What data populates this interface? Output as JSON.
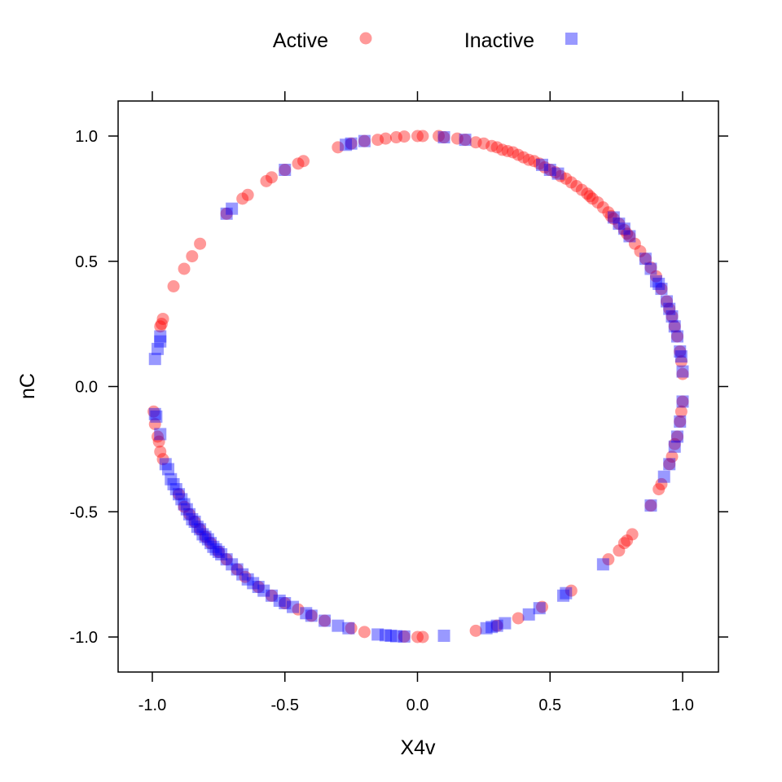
{
  "chart_data": {
    "type": "scatter",
    "title": "",
    "xlabel": "X4v",
    "ylabel": "nC",
    "xlim": [
      -1.13,
      1.13
    ],
    "ylim": [
      -1.14,
      1.14
    ],
    "x_ticks": [
      -1.0,
      -0.5,
      0.0,
      0.5,
      1.0
    ],
    "y_ticks": [
      -1.0,
      -0.5,
      0.0,
      0.5,
      1.0
    ],
    "x_tick_labels": [
      "-1.0",
      "-0.5",
      "0.0",
      "0.5",
      "1.0"
    ],
    "y_tick_labels": [
      "-1.0",
      "-0.5",
      "0.0",
      "0.5",
      "1.0"
    ],
    "grid": false,
    "legend_position": "top",
    "series": [
      {
        "name": "Active",
        "marker": "circle",
        "color": "#ff0000",
        "opacity": 0.4,
        "points": [
          [
            0.0,
            1.0
          ],
          [
            0.02,
            1.0
          ],
          [
            0.08,
            1.0
          ],
          [
            0.1,
            0.995
          ],
          [
            0.15,
            0.99
          ],
          [
            0.18,
            0.985
          ],
          [
            0.22,
            0.975
          ],
          [
            0.25,
            0.97
          ],
          [
            0.28,
            0.96
          ],
          [
            0.3,
            0.955
          ],
          [
            0.32,
            0.945
          ],
          [
            0.34,
            0.94
          ],
          [
            0.36,
            0.935
          ],
          [
            0.38,
            0.925
          ],
          [
            0.4,
            0.915
          ],
          [
            0.42,
            0.905
          ],
          [
            0.44,
            0.9
          ],
          [
            0.46,
            0.89
          ],
          [
            0.48,
            0.875
          ],
          [
            0.5,
            0.865
          ],
          [
            0.52,
            0.855
          ],
          [
            0.54,
            0.84
          ],
          [
            0.56,
            0.83
          ],
          [
            0.58,
            0.815
          ],
          [
            0.6,
            0.8
          ],
          [
            0.62,
            0.785
          ],
          [
            0.64,
            0.77
          ],
          [
            0.65,
            0.76
          ],
          [
            0.66,
            0.75
          ],
          [
            0.68,
            0.735
          ],
          [
            0.7,
            0.715
          ],
          [
            0.72,
            0.695
          ],
          [
            0.73,
            0.68
          ],
          [
            0.74,
            0.67
          ],
          [
            0.76,
            0.65
          ],
          [
            0.78,
            0.625
          ],
          [
            0.79,
            0.61
          ],
          [
            0.8,
            0.6
          ],
          [
            0.82,
            0.57
          ],
          [
            0.84,
            0.54
          ],
          [
            0.86,
            0.51
          ],
          [
            0.88,
            0.475
          ],
          [
            0.9,
            0.44
          ],
          [
            0.92,
            0.39
          ],
          [
            0.94,
            0.34
          ],
          [
            0.95,
            0.31
          ],
          [
            0.96,
            0.28
          ],
          [
            0.97,
            0.24
          ],
          [
            0.98,
            0.2
          ],
          [
            0.99,
            0.14
          ],
          [
            0.995,
            0.1
          ],
          [
            1.0,
            0.05
          ],
          [
            -0.05,
            0.998
          ],
          [
            -0.08,
            0.995
          ],
          [
            -0.12,
            0.99
          ],
          [
            -0.15,
            0.985
          ],
          [
            -0.2,
            0.98
          ],
          [
            -0.25,
            0.97
          ],
          [
            -0.3,
            0.955
          ],
          [
            -0.43,
            0.9
          ],
          [
            -0.45,
            0.89
          ],
          [
            -0.5,
            0.865
          ],
          [
            -0.55,
            0.835
          ],
          [
            -0.57,
            0.82
          ],
          [
            -0.64,
            0.765
          ],
          [
            -0.66,
            0.75
          ],
          [
            -0.72,
            0.69
          ],
          [
            -0.82,
            0.57
          ],
          [
            -0.85,
            0.52
          ],
          [
            -0.88,
            0.47
          ],
          [
            -0.92,
            0.4
          ],
          [
            -0.96,
            0.27
          ],
          [
            -0.965,
            0.25
          ],
          [
            -0.97,
            0.24
          ],
          [
            -0.995,
            -0.1
          ],
          [
            -0.99,
            -0.15
          ],
          [
            -0.98,
            -0.2
          ],
          [
            -0.975,
            -0.22
          ],
          [
            -0.97,
            -0.26
          ],
          [
            -0.96,
            -0.29
          ],
          [
            -0.9,
            -0.43
          ],
          [
            -0.88,
            -0.48
          ],
          [
            -0.86,
            -0.51
          ],
          [
            -0.84,
            -0.54
          ],
          [
            -0.82,
            -0.57
          ],
          [
            -0.8,
            -0.6
          ],
          [
            -0.78,
            -0.625
          ],
          [
            -0.75,
            -0.66
          ],
          [
            -0.72,
            -0.69
          ],
          [
            -0.68,
            -0.73
          ],
          [
            -0.65,
            -0.76
          ],
          [
            -0.6,
            -0.8
          ],
          [
            -0.55,
            -0.835
          ],
          [
            -0.5,
            -0.865
          ],
          [
            -0.45,
            -0.89
          ],
          [
            -0.4,
            -0.915
          ],
          [
            -0.35,
            -0.935
          ],
          [
            -0.25,
            -0.965
          ],
          [
            -0.2,
            -0.98
          ],
          [
            -0.05,
            -0.998
          ],
          [
            0.0,
            -1.0
          ],
          [
            0.02,
            -1.0
          ],
          [
            0.22,
            -0.975
          ],
          [
            0.3,
            -0.955
          ],
          [
            0.38,
            -0.925
          ],
          [
            0.47,
            -0.88
          ],
          [
            0.58,
            -0.815
          ],
          [
            0.72,
            -0.69
          ],
          [
            0.76,
            -0.655
          ],
          [
            0.78,
            -0.625
          ],
          [
            0.79,
            -0.615
          ],
          [
            0.81,
            -0.59
          ],
          [
            0.88,
            -0.475
          ],
          [
            0.91,
            -0.41
          ],
          [
            0.92,
            -0.39
          ],
          [
            0.95,
            -0.31
          ],
          [
            0.96,
            -0.28
          ],
          [
            0.97,
            -0.23
          ],
          [
            0.98,
            -0.2
          ],
          [
            0.99,
            -0.14
          ],
          [
            0.995,
            -0.1
          ],
          [
            1.0,
            -0.06
          ]
        ]
      },
      {
        "name": "Inactive",
        "marker": "square",
        "color": "#0000ff",
        "opacity": 0.4,
        "points": [
          [
            0.47,
            0.885
          ],
          [
            0.5,
            0.865
          ],
          [
            0.53,
            0.85
          ],
          [
            0.74,
            0.675
          ],
          [
            0.76,
            0.65
          ],
          [
            0.78,
            0.63
          ],
          [
            0.8,
            0.6
          ],
          [
            0.86,
            0.51
          ],
          [
            0.88,
            0.47
          ],
          [
            0.9,
            0.42
          ],
          [
            0.91,
            0.41
          ],
          [
            0.92,
            0.39
          ],
          [
            0.94,
            0.34
          ],
          [
            0.95,
            0.31
          ],
          [
            0.96,
            0.28
          ],
          [
            0.97,
            0.24
          ],
          [
            0.98,
            0.2
          ],
          [
            0.99,
            0.14
          ],
          [
            0.995,
            0.12
          ],
          [
            1.0,
            0.06
          ],
          [
            0.1,
            0.995
          ],
          [
            0.18,
            0.985
          ],
          [
            -0.2,
            0.98
          ],
          [
            -0.25,
            0.97
          ],
          [
            -0.27,
            0.965
          ],
          [
            -0.5,
            0.865
          ],
          [
            -0.7,
            0.71
          ],
          [
            -0.72,
            0.69
          ],
          [
            -0.97,
            0.18
          ],
          [
            -0.98,
            0.15
          ],
          [
            -0.99,
            0.11
          ],
          [
            -0.97,
            0.2
          ],
          [
            -0.99,
            -0.11
          ],
          [
            -0.985,
            -0.12
          ],
          [
            -0.97,
            -0.19
          ],
          [
            -0.95,
            -0.31
          ],
          [
            -0.94,
            -0.33
          ],
          [
            -0.93,
            -0.37
          ],
          [
            -0.92,
            -0.39
          ],
          [
            -0.91,
            -0.41
          ],
          [
            -0.9,
            -0.43
          ],
          [
            -0.89,
            -0.45
          ],
          [
            -0.88,
            -0.47
          ],
          [
            -0.87,
            -0.49
          ],
          [
            -0.86,
            -0.51
          ],
          [
            -0.85,
            -0.53
          ],
          [
            -0.84,
            -0.54
          ],
          [
            -0.83,
            -0.56
          ],
          [
            -0.82,
            -0.57
          ],
          [
            -0.81,
            -0.59
          ],
          [
            -0.8,
            -0.6
          ],
          [
            -0.79,
            -0.61
          ],
          [
            -0.78,
            -0.625
          ],
          [
            -0.77,
            -0.64
          ],
          [
            -0.76,
            -0.65
          ],
          [
            -0.75,
            -0.66
          ],
          [
            -0.74,
            -0.67
          ],
          [
            -0.72,
            -0.69
          ],
          [
            -0.7,
            -0.71
          ],
          [
            -0.68,
            -0.73
          ],
          [
            -0.66,
            -0.75
          ],
          [
            -0.64,
            -0.77
          ],
          [
            -0.62,
            -0.785
          ],
          [
            -0.6,
            -0.8
          ],
          [
            -0.58,
            -0.815
          ],
          [
            -0.55,
            -0.835
          ],
          [
            -0.52,
            -0.855
          ],
          [
            -0.5,
            -0.865
          ],
          [
            -0.47,
            -0.88
          ],
          [
            -0.42,
            -0.905
          ],
          [
            -0.4,
            -0.915
          ],
          [
            -0.35,
            -0.935
          ],
          [
            -0.3,
            -0.955
          ],
          [
            -0.26,
            -0.965
          ],
          [
            -0.15,
            -0.99
          ],
          [
            -0.12,
            -0.993
          ],
          [
            -0.1,
            -0.995
          ],
          [
            -0.08,
            -0.997
          ],
          [
            -0.05,
            -0.998
          ],
          [
            0.1,
            -0.995
          ],
          [
            0.26,
            -0.965
          ],
          [
            0.28,
            -0.96
          ],
          [
            0.3,
            -0.955
          ],
          [
            0.33,
            -0.945
          ],
          [
            0.42,
            -0.91
          ],
          [
            0.46,
            -0.885
          ],
          [
            0.55,
            -0.835
          ],
          [
            0.56,
            -0.825
          ],
          [
            0.7,
            -0.71
          ],
          [
            0.88,
            -0.475
          ],
          [
            0.93,
            -0.36
          ],
          [
            0.95,
            -0.31
          ],
          [
            0.97,
            -0.24
          ],
          [
            0.98,
            -0.2
          ],
          [
            0.99,
            -0.14
          ],
          [
            1.0,
            -0.06
          ]
        ]
      }
    ]
  }
}
